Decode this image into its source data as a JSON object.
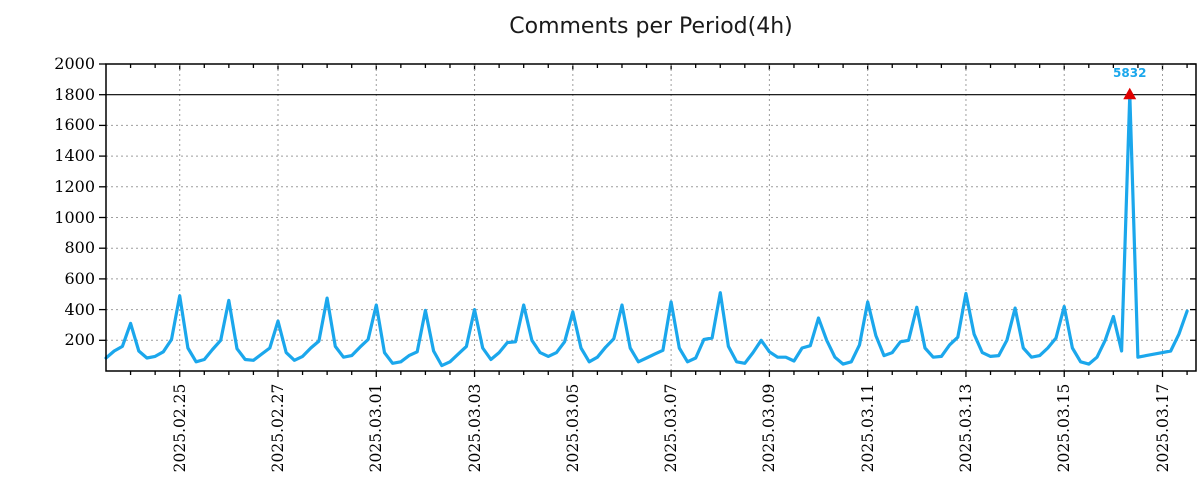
{
  "chart_data": {
    "type": "line",
    "title": "Comments per Period(4h)",
    "xlabel": "",
    "ylabel": "",
    "period_hours": 4,
    "start_time": "2025-02-23 12:00",
    "ylim": [
      0,
      2000
    ],
    "y_tick_step": 200,
    "y_ticks": [
      200,
      400,
      600,
      800,
      1000,
      1200,
      1400,
      1600,
      1800,
      2000
    ],
    "x_tick_labels": [
      "2025.02.25",
      "2025.02.27",
      "2025.03.01",
      "2025.03.03",
      "2025.03.05",
      "2025.03.07",
      "2025.03.09",
      "2025.03.11",
      "2025.03.13",
      "2025.03.15",
      "2025.03.17"
    ],
    "grid": "dotted",
    "legend": "none",
    "cap_value": 1800,
    "overflow": {
      "index": 125,
      "value": 5832,
      "label": "5832",
      "marker": "triangle-up"
    },
    "colors": {
      "line": "#1ba7ec",
      "overflow_marker": "#e00000",
      "overflow_label": "#1ba7ec",
      "grid": "#9e9e9e",
      "axis": "#000000",
      "cap_line": "#000000",
      "title_text": "#1a1a1a"
    },
    "values": [
      85,
      130,
      160,
      310,
      130,
      85,
      95,
      125,
      205,
      490,
      150,
      60,
      75,
      140,
      200,
      460,
      145,
      75,
      70,
      110,
      150,
      325,
      120,
      70,
      95,
      150,
      195,
      475,
      160,
      90,
      100,
      155,
      205,
      430,
      120,
      50,
      60,
      100,
      125,
      395,
      130,
      35,
      60,
      110,
      160,
      400,
      150,
      75,
      120,
      185,
      190,
      430,
      200,
      120,
      95,
      120,
      190,
      385,
      150,
      60,
      90,
      155,
      210,
      430,
      150,
      60,
      85,
      110,
      135,
      450,
      150,
      60,
      85,
      205,
      215,
      510,
      160,
      60,
      50,
      120,
      200,
      125,
      90,
      90,
      65,
      150,
      165,
      345,
      200,
      90,
      45,
      60,
      170,
      450,
      230,
      100,
      120,
      190,
      200,
      415,
      150,
      90,
      95,
      170,
      220,
      505,
      240,
      120,
      95,
      100,
      200,
      410,
      150,
      90,
      100,
      150,
      215,
      420,
      150,
      60,
      45,
      90,
      200,
      355,
      130,
      5832,
      90,
      100,
      110,
      120,
      130,
      240,
      390
    ],
    "x_major_first_index": 9,
    "x_major_every_points": 12,
    "x_minor_every_points": 3
  }
}
